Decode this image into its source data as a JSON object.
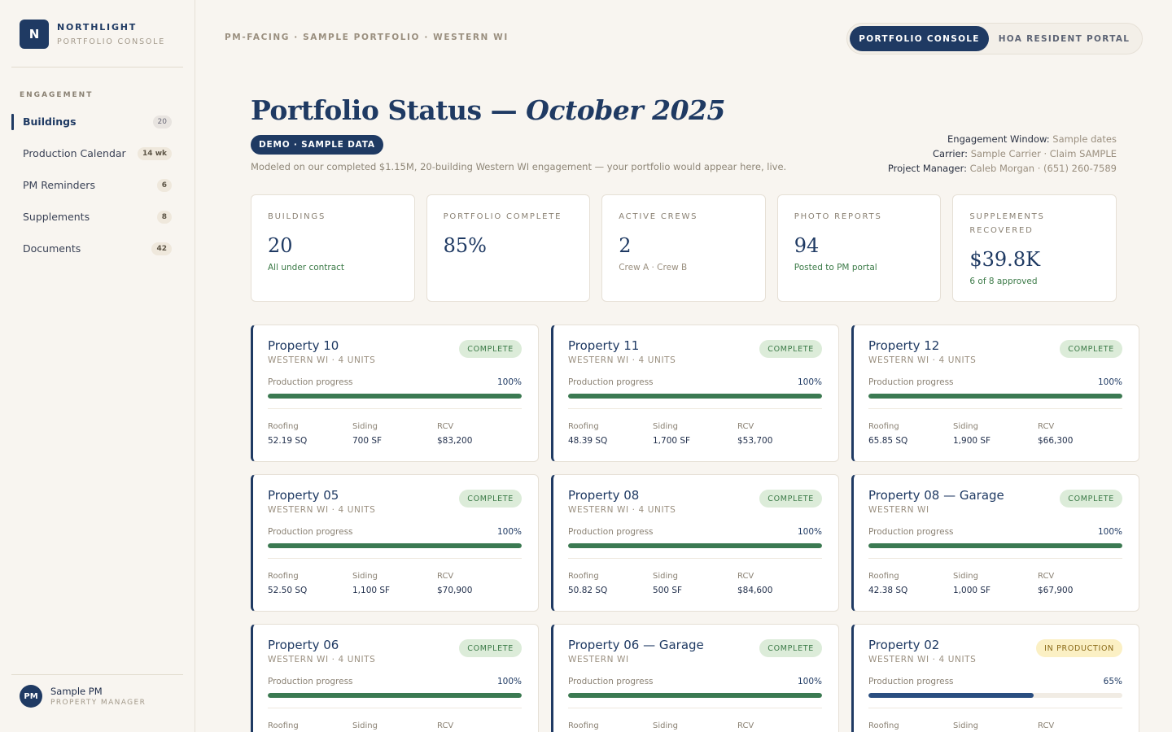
{
  "brand": {
    "logo_letter": "N",
    "name": "NORTHLIGHT",
    "sub": "PORTFOLIO CONSOLE"
  },
  "nav": {
    "heading": "ENGAGEMENT",
    "items": [
      {
        "label": "Buildings",
        "count": "20",
        "active": true
      },
      {
        "label": "Production Calendar",
        "count": "14 wk"
      },
      {
        "label": "PM Reminders",
        "count": "6"
      },
      {
        "label": "Supplements",
        "count": "8"
      },
      {
        "label": "Documents",
        "count": "42"
      }
    ]
  },
  "user": {
    "initials": "PM",
    "name": "Sample PM",
    "role": "PROPERTY MANAGER"
  },
  "breadcrumb": "PM-FACING · SAMPLE PORTFOLIO · WESTERN WI",
  "view_toggle": {
    "active": "PORTFOLIO CONSOLE",
    "inactive": "HOA RESIDENT PORTAL"
  },
  "header": {
    "title_main": "Portfolio Status — ",
    "title_month": "October 2025",
    "badge": "DEMO · SAMPLE DATA",
    "subtitle": "Modeled on our completed $1.15M, 20-building Western WI engagement — your portfolio would appear here, live.",
    "meta": [
      {
        "label": "Engagement Window:",
        "value": "Sample dates"
      },
      {
        "label": "Carrier:",
        "value": "Sample Carrier · Claim SAMPLE"
      },
      {
        "label": "Project Manager:",
        "value": "Caleb Morgan · (651) 260-7589"
      }
    ]
  },
  "stats": [
    {
      "label": "BUILDINGS",
      "value": "20",
      "note": "All under contract",
      "note_tone": "green"
    },
    {
      "label": "PORTFOLIO COMPLETE",
      "value": "85%",
      "note": "",
      "note_tone": "green"
    },
    {
      "label": "ACTIVE CREWS",
      "value": "2",
      "note": "Crew A · Crew B",
      "note_tone": "grey"
    },
    {
      "label": "PHOTO REPORTS",
      "value": "94",
      "note": "Posted to PM portal",
      "note_tone": "green"
    },
    {
      "label": "SUPPLEMENTS RECOVERED",
      "value": "$39.8K",
      "note": "6 of 8 approved",
      "note_tone": "green"
    }
  ],
  "property_labels": {
    "progress": "Production progress",
    "roofing": "Roofing",
    "siding": "Siding",
    "rcv": "RCV"
  },
  "properties": [
    {
      "name": "Property 10",
      "meta": "WESTERN WI · 4 UNITS",
      "status": "COMPLETE",
      "progress": 100,
      "progress_text": "100%",
      "roofing": "52.19 SQ",
      "siding": "700 SF",
      "rcv": "$83,200"
    },
    {
      "name": "Property 11",
      "meta": "WESTERN WI · 4 UNITS",
      "status": "COMPLETE",
      "progress": 100,
      "progress_text": "100%",
      "roofing": "48.39 SQ",
      "siding": "1,700 SF",
      "rcv": "$53,700"
    },
    {
      "name": "Property 12",
      "meta": "WESTERN WI · 4 UNITS",
      "status": "COMPLETE",
      "progress": 100,
      "progress_text": "100%",
      "roofing": "65.85 SQ",
      "siding": "1,900 SF",
      "rcv": "$66,300"
    },
    {
      "name": "Property 05",
      "meta": "WESTERN WI · 4 UNITS",
      "status": "COMPLETE",
      "progress": 100,
      "progress_text": "100%",
      "roofing": "52.50 SQ",
      "siding": "1,100 SF",
      "rcv": "$70,900"
    },
    {
      "name": "Property 08",
      "meta": "WESTERN WI · 4 UNITS",
      "status": "COMPLETE",
      "progress": 100,
      "progress_text": "100%",
      "roofing": "50.82 SQ",
      "siding": "500 SF",
      "rcv": "$84,600"
    },
    {
      "name": "Property 08 — Garage",
      "meta": "WESTERN WI",
      "status": "COMPLETE",
      "progress": 100,
      "progress_text": "100%",
      "roofing": "42.38 SQ",
      "siding": "1,000 SF",
      "rcv": "$67,900"
    },
    {
      "name": "Property 06",
      "meta": "WESTERN WI · 4 UNITS",
      "status": "COMPLETE",
      "progress": 100,
      "progress_text": "100%",
      "roofing": "",
      "siding": "",
      "rcv": ""
    },
    {
      "name": "Property 06 — Garage",
      "meta": "WESTERN WI",
      "status": "COMPLETE",
      "progress": 100,
      "progress_text": "100%",
      "roofing": "",
      "siding": "",
      "rcv": ""
    },
    {
      "name": "Property 02",
      "meta": "WESTERN WI · 4 UNITS",
      "status": "IN PRODUCTION",
      "progress": 65,
      "progress_text": "65%",
      "roofing": "",
      "siding": "",
      "rcv": ""
    }
  ],
  "colors": {
    "navy": "#1f3a63",
    "green": "#3b7a52",
    "background": "#f8f5f0"
  }
}
